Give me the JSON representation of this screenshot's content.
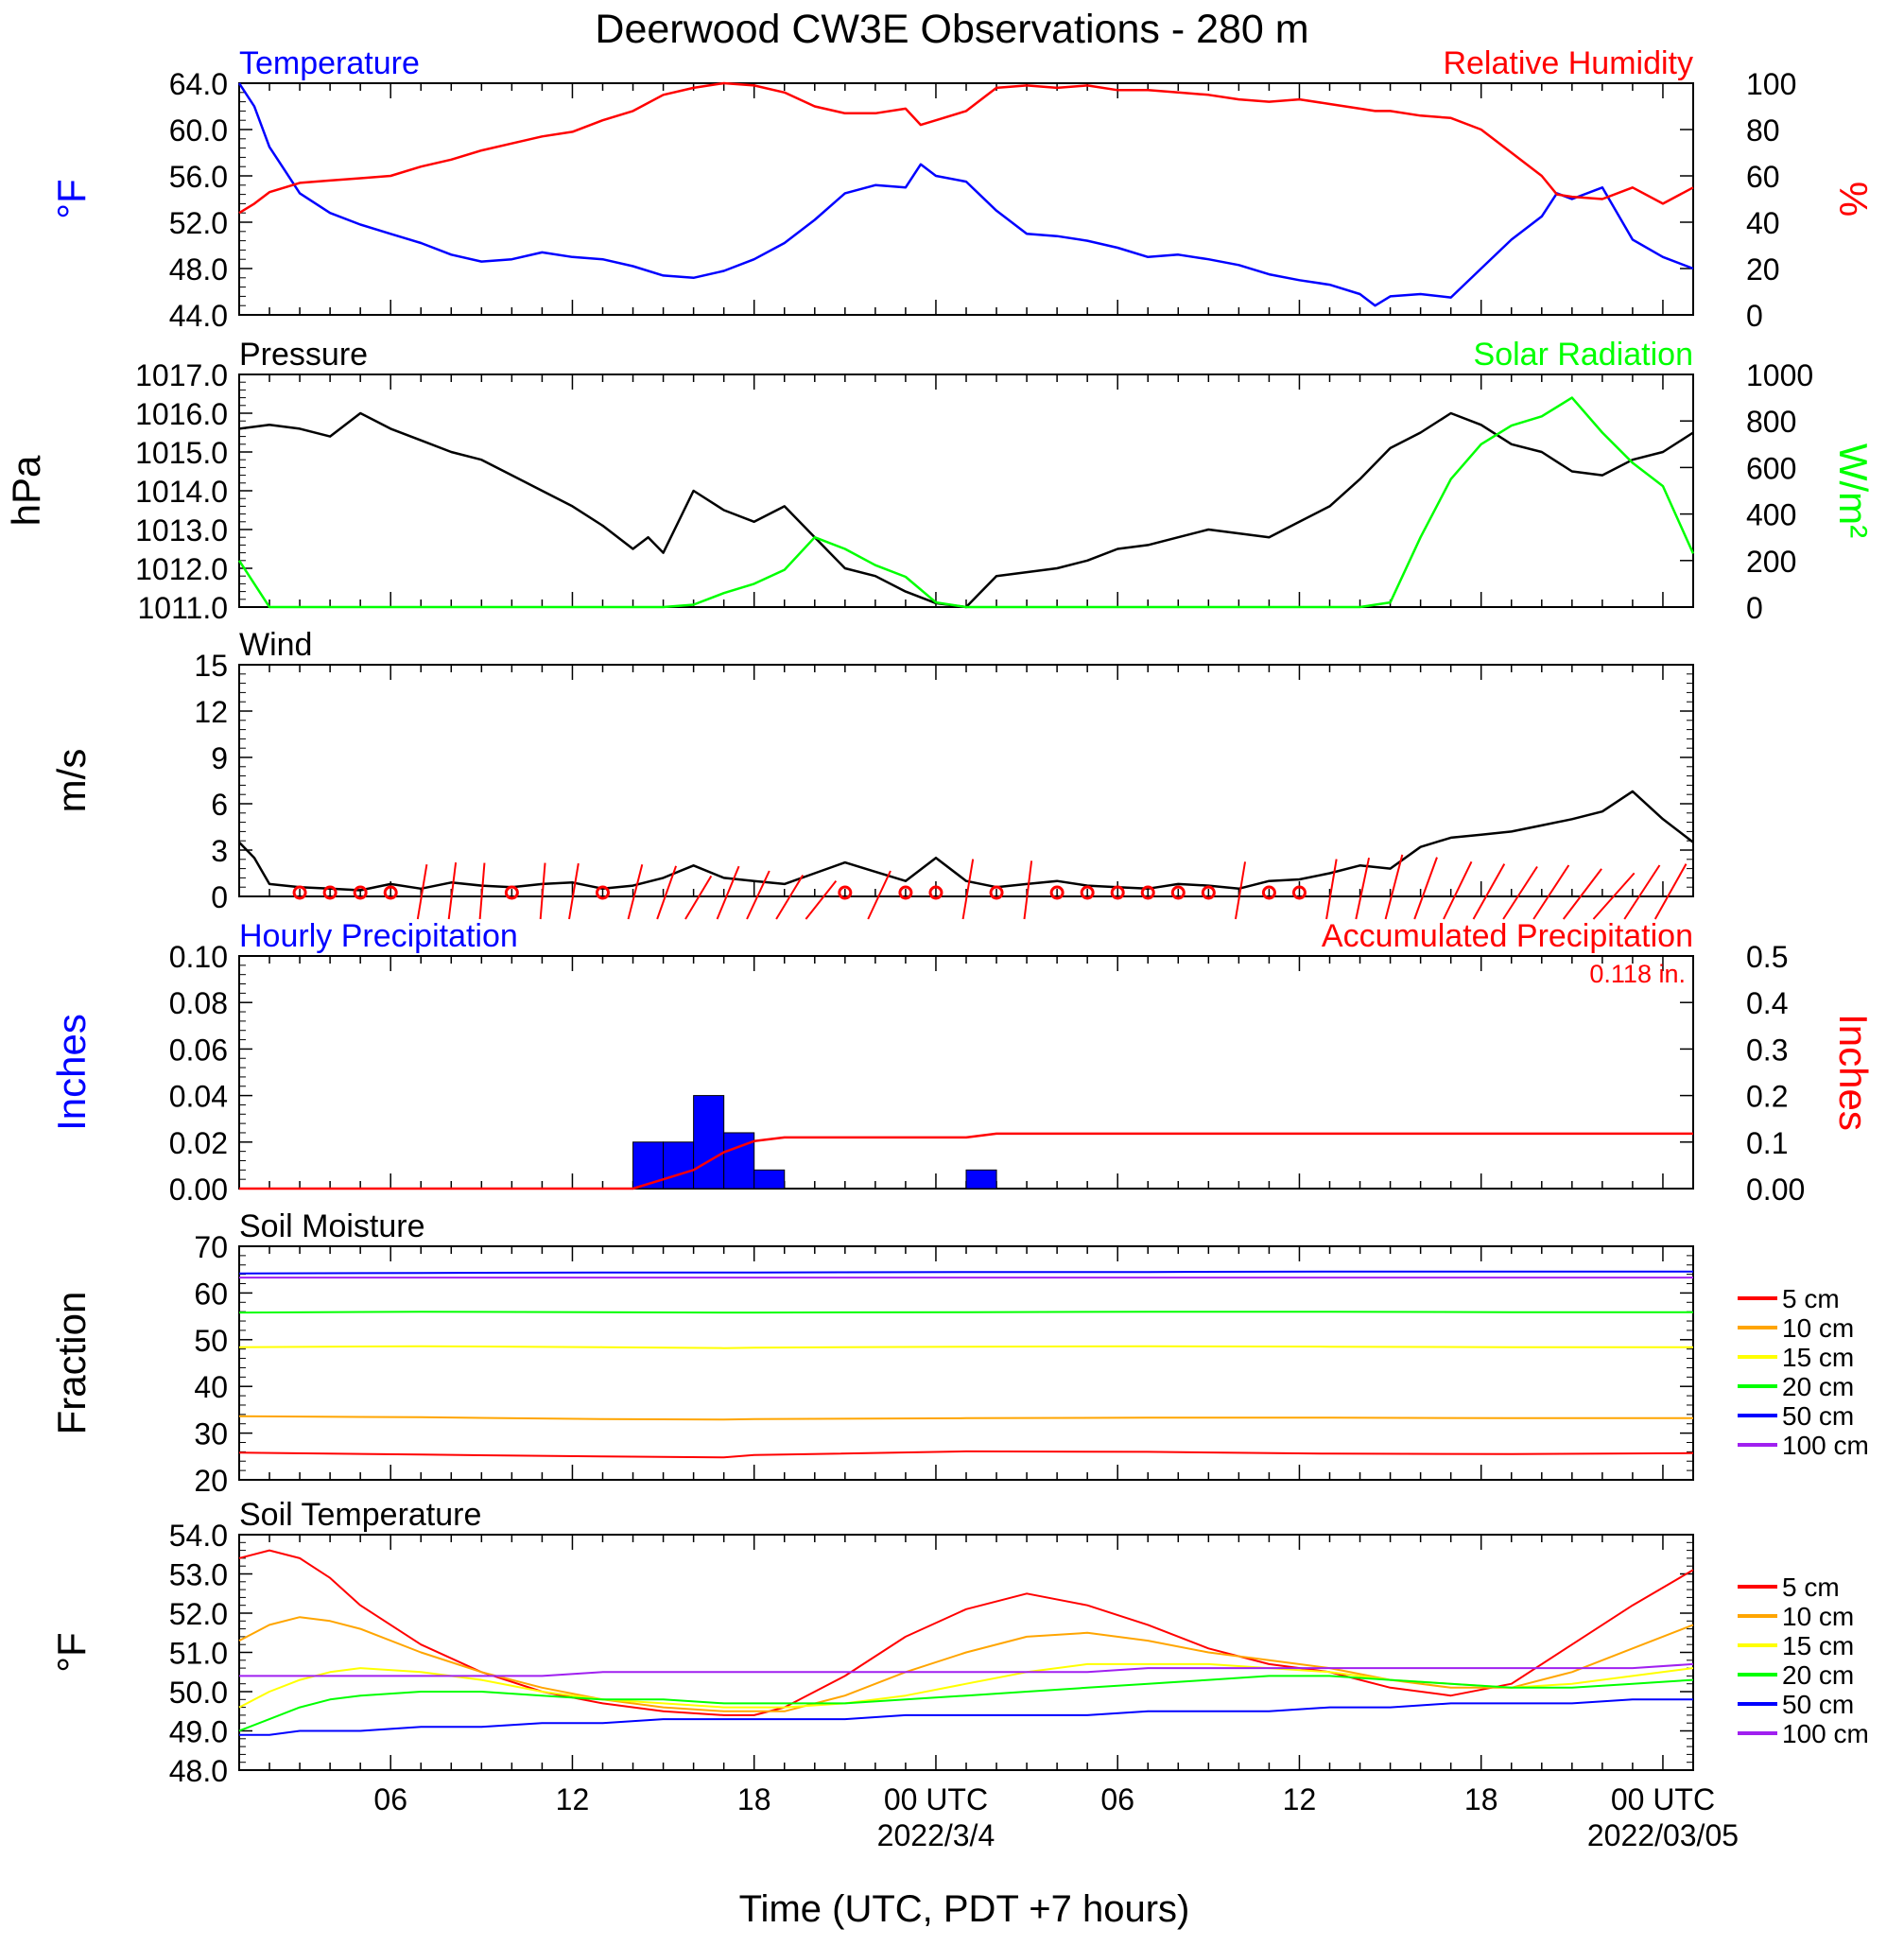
{
  "title": "Deerwood CW3E Observations - 280 m",
  "x_axis": {
    "title": "Time (UTC, PDT +7 hours)",
    "range_hours": [
      0,
      48
    ],
    "tick_labels": [
      {
        "hour": 5,
        "label": "06"
      },
      {
        "hour": 11,
        "label": "12"
      },
      {
        "hour": 17,
        "label": "18"
      },
      {
        "hour": 23,
        "label": "00 UTC"
      },
      {
        "hour": 29,
        "label": "06"
      },
      {
        "hour": 35,
        "label": "12"
      },
      {
        "hour": 41,
        "label": "18"
      },
      {
        "hour": 47,
        "label": "00 UTC"
      }
    ],
    "date_labels": [
      {
        "hour": 23,
        "label": "2022/3/4"
      },
      {
        "hour": 47,
        "label": "2022/03/05"
      }
    ]
  },
  "colors": {
    "temperature": "#0000ff",
    "humidity": "#ff0000",
    "pressure": "#000000",
    "solar": "#00ff00",
    "wind": "#000000",
    "wind_barbs": "#ff0000",
    "hourly_precip": "#0000ff",
    "accum_precip": "#ff0000",
    "depth_5cm": "#ff0000",
    "depth_10cm": "#ffa500",
    "depth_15cm": "#ffff00",
    "depth_20cm": "#00ff00",
    "depth_50cm": "#0000ff",
    "depth_100cm": "#a020f0"
  },
  "chart_data": [
    {
      "type": "line",
      "panel": "temperature-humidity",
      "left_title": "Temperature",
      "right_title": "Relative Humidity",
      "left_ylabel": "°F",
      "right_ylabel": "%",
      "left_ylim": [
        44,
        64
      ],
      "right_ylim": [
        0,
        100
      ],
      "left_ticks": [
        "44.0",
        "48.0",
        "52.0",
        "56.0",
        "60.0",
        "64.0"
      ],
      "right_ticks": [
        "0",
        "20",
        "40",
        "60",
        "80",
        "100"
      ],
      "x": [
        0,
        0.5,
        1,
        1.5,
        2,
        3,
        4,
        5,
        6,
        7,
        8,
        9,
        10,
        11,
        12,
        13,
        14,
        15,
        16,
        17,
        18,
        19,
        20,
        21,
        22,
        22.5,
        23,
        24,
        25,
        26,
        27,
        28,
        29,
        30,
        31,
        32,
        33,
        34,
        35,
        36,
        37,
        37.5,
        38,
        39,
        40,
        41,
        42,
        43,
        43.5,
        44,
        45,
        46,
        47,
        48
      ],
      "series": [
        {
          "name": "Temperature",
          "axis": "left",
          "values": [
            64.0,
            62.0,
            58.5,
            56.5,
            54.5,
            52.8,
            51.8,
            51.0,
            50.2,
            49.2,
            48.6,
            48.8,
            49.4,
            49.0,
            48.8,
            48.2,
            47.4,
            47.2,
            47.8,
            48.8,
            50.2,
            52.2,
            54.5,
            55.2,
            55.0,
            57.0,
            56.0,
            55.5,
            53.0,
            51.0,
            50.8,
            50.4,
            49.8,
            49.0,
            49.2,
            48.8,
            48.3,
            47.5,
            47.0,
            46.6,
            45.8,
            44.8,
            45.6,
            45.8,
            45.5,
            48.0,
            50.5,
            52.5,
            54.5,
            54.0,
            55.0,
            50.5,
            49.0,
            48.0
          ]
        },
        {
          "name": "Relative Humidity",
          "axis": "right",
          "values": [
            44,
            48,
            53,
            55,
            57,
            58,
            59,
            60,
            64,
            67,
            71,
            74,
            77,
            79,
            84,
            88,
            95,
            98,
            100,
            99,
            96,
            90,
            87,
            87,
            89,
            82,
            84,
            88,
            98,
            99,
            98,
            99,
            97,
            97,
            96,
            95,
            93,
            92,
            93,
            91,
            89,
            88,
            88,
            86,
            85,
            80,
            70,
            60,
            52,
            51,
            50,
            55,
            48,
            55
          ]
        }
      ]
    },
    {
      "type": "line",
      "panel": "pressure-solar",
      "left_title": "Pressure",
      "right_title": "Solar Radiation",
      "left_ylabel": "hPa",
      "right_ylabel": "W/m²",
      "left_ylim": [
        1011,
        1017
      ],
      "right_ylim": [
        0,
        1000
      ],
      "left_ticks": [
        "1011.0",
        "1012.0",
        "1013.0",
        "1014.0",
        "1015.0",
        "1016.0",
        "1017.0"
      ],
      "right_ticks": [
        "0",
        "200",
        "400",
        "600",
        "800",
        "1000"
      ],
      "x": [
        0,
        1,
        2,
        3,
        4,
        5,
        6,
        7,
        8,
        9,
        10,
        11,
        12,
        13,
        13.5,
        14,
        15,
        16,
        17,
        18,
        19,
        20,
        21,
        22,
        23,
        24,
        25,
        26,
        27,
        28,
        29,
        30,
        31,
        32,
        33,
        34,
        35,
        36,
        37,
        38,
        39,
        40,
        41,
        42,
        43,
        44,
        45,
        46,
        47,
        48
      ],
      "series": [
        {
          "name": "Pressure",
          "axis": "left",
          "values": [
            1015.6,
            1015.7,
            1015.6,
            1015.4,
            1016.0,
            1015.6,
            1015.3,
            1015.0,
            1014.8,
            1014.4,
            1014.0,
            1013.6,
            1013.1,
            1012.5,
            1012.8,
            1012.4,
            1014.0,
            1013.5,
            1013.2,
            1013.6,
            1012.8,
            1012.0,
            1011.8,
            1011.4,
            1011.1,
            1011.0,
            1011.8,
            1011.9,
            1012.0,
            1012.2,
            1012.5,
            1012.6,
            1012.8,
            1013.0,
            1012.9,
            1012.8,
            1013.2,
            1013.6,
            1014.3,
            1015.1,
            1015.5,
            1016.0,
            1015.7,
            1015.2,
            1015.0,
            1014.5,
            1014.4,
            1014.8,
            1015.0,
            1015.5
          ]
        },
        {
          "name": "Solar Radiation",
          "axis": "right",
          "values": [
            200,
            0,
            0,
            0,
            0,
            0,
            0,
            0,
            0,
            0,
            0,
            0,
            0,
            0,
            0,
            0,
            10,
            60,
            100,
            160,
            300,
            250,
            180,
            130,
            20,
            0,
            0,
            0,
            0,
            0,
            0,
            0,
            0,
            0,
            0,
            0,
            0,
            0,
            0,
            20,
            300,
            550,
            700,
            780,
            820,
            900,
            750,
            620,
            520,
            230
          ]
        }
      ]
    },
    {
      "type": "line",
      "panel": "wind",
      "left_title": "Wind",
      "left_ylabel": "m/s",
      "left_ylim": [
        0,
        15
      ],
      "left_ticks": [
        "0",
        "3",
        "6",
        "9",
        "12",
        "15"
      ],
      "x": [
        0,
        0.5,
        1,
        2,
        3,
        4,
        5,
        6,
        7,
        8,
        9,
        10,
        11,
        12,
        13,
        14,
        15,
        16,
        17,
        18,
        19,
        20,
        21,
        22,
        23,
        24,
        25,
        26,
        27,
        28,
        29,
        30,
        31,
        32,
        33,
        34,
        35,
        36,
        37,
        38,
        39,
        40,
        41,
        42,
        43,
        44,
        45,
        46,
        47,
        48
      ],
      "series": [
        {
          "name": "Wind",
          "axis": "left",
          "values": [
            3.5,
            2.5,
            0.8,
            0.6,
            0.5,
            0.4,
            0.8,
            0.5,
            0.9,
            0.7,
            0.6,
            0.8,
            0.9,
            0.5,
            0.7,
            1.2,
            2.0,
            1.2,
            1.0,
            0.8,
            1.5,
            2.2,
            1.6,
            1.0,
            2.5,
            1.0,
            0.6,
            0.8,
            1.0,
            0.7,
            0.6,
            0.5,
            0.8,
            0.7,
            0.5,
            1.0,
            1.1,
            1.5,
            2.0,
            1.8,
            3.2,
            3.8,
            4.0,
            4.2,
            4.6,
            5.0,
            5.5,
            6.8,
            5.0,
            3.5
          ]
        }
      ],
      "barb_hours": [
        2,
        3,
        4,
        5,
        6,
        7,
        8,
        9,
        10,
        11,
        12,
        13,
        14,
        15,
        16,
        17,
        18,
        19,
        20,
        21,
        22,
        23,
        24,
        25,
        26,
        27,
        28,
        29,
        30,
        31,
        32,
        33,
        34,
        35,
        36,
        37,
        38,
        39,
        40,
        41,
        42,
        43,
        44,
        45,
        46,
        47
      ],
      "barb_speeds": [
        0,
        0,
        0,
        0,
        1.0,
        1.2,
        1.0,
        0,
        1.0,
        1.2,
        0,
        1.5,
        2.0,
        2.2,
        2.5,
        2.0,
        2.5,
        3.0,
        0,
        2.0,
        0,
        0,
        2.0,
        0,
        1.5,
        0,
        0,
        0,
        0,
        0,
        0,
        1.5,
        0,
        0,
        2.0,
        2.5,
        3.5,
        4.0,
        4.5,
        5.0,
        5.5,
        6.0,
        6.5,
        7.0,
        6.0,
        5.0
      ],
      "barb_directions": [
        0,
        0,
        0,
        0,
        20,
        15,
        10,
        0,
        10,
        20,
        0,
        30,
        40,
        60,
        45,
        50,
        60,
        70,
        0,
        50,
        0,
        0,
        20,
        0,
        15,
        0,
        0,
        0,
        0,
        0,
        0,
        20,
        0,
        0,
        20,
        25,
        30,
        40,
        50,
        55,
        60,
        60,
        65,
        70,
        60,
        55
      ]
    },
    {
      "type": "bar",
      "panel": "precipitation",
      "left_title": "Hourly Precipitation",
      "right_title": "Accumulated Precipitation",
      "total_label": "0.118 in.",
      "left_ylabel": "Inches",
      "right_ylabel": "Inches",
      "left_ylim": [
        0,
        0.1
      ],
      "right_ylim": [
        0,
        0.5
      ],
      "left_ticks": [
        "0.00",
        "0.02",
        "0.04",
        "0.06",
        "0.08",
        "0.10"
      ],
      "right_ticks": [
        "0.00",
        "0.1",
        "0.2",
        "0.3",
        "0.4",
        "0.5"
      ],
      "bar_start_hours": [
        13,
        14,
        15,
        16,
        17,
        24
      ],
      "bar_values": [
        0.02,
        0.02,
        0.04,
        0.024,
        0.008,
        0.008
      ],
      "series": [
        {
          "name": "Accumulated Precipitation",
          "axis": "right",
          "x": [
            0,
            13,
            14,
            15,
            16,
            17,
            18,
            24,
            25,
            48
          ],
          "values": [
            0,
            0,
            0.02,
            0.04,
            0.078,
            0.102,
            0.11,
            0.11,
            0.118,
            0.118
          ]
        }
      ]
    },
    {
      "type": "line",
      "panel": "soil-moisture",
      "left_title": "Soil Moisture",
      "left_ylabel": "Fraction",
      "left_ylim": [
        20,
        70
      ],
      "left_ticks": [
        "20",
        "30",
        "40",
        "50",
        "60",
        "70"
      ],
      "x": [
        0,
        6,
        12,
        16,
        17,
        24,
        30,
        36,
        42,
        48
      ],
      "series": [
        {
          "name": "5 cm",
          "values": [
            25.8,
            25.4,
            25.0,
            24.8,
            25.3,
            26.1,
            26.0,
            25.6,
            25.5,
            25.7
          ]
        },
        {
          "name": "10 cm",
          "values": [
            33.6,
            33.4,
            33.0,
            32.9,
            33.0,
            33.2,
            33.3,
            33.3,
            33.2,
            33.2
          ]
        },
        {
          "name": "15 cm",
          "values": [
            48.4,
            48.6,
            48.4,
            48.2,
            48.3,
            48.5,
            48.6,
            48.5,
            48.4,
            48.4
          ]
        },
        {
          "name": "20 cm",
          "values": [
            55.8,
            56.0,
            55.9,
            55.8,
            55.8,
            55.9,
            56.0,
            56.0,
            55.9,
            55.9
          ]
        },
        {
          "name": "50 cm",
          "values": [
            64.2,
            64.3,
            64.4,
            64.4,
            64.4,
            64.5,
            64.5,
            64.6,
            64.6,
            64.6
          ]
        },
        {
          "name": "100 cm",
          "values": [
            63.3,
            63.3,
            63.3,
            63.3,
            63.3,
            63.3,
            63.3,
            63.3,
            63.3,
            63.3
          ]
        }
      ]
    },
    {
      "type": "line",
      "panel": "soil-temperature",
      "left_title": "Soil Temperature",
      "left_ylabel": "°F",
      "left_ylim": [
        48,
        54
      ],
      "left_ticks": [
        "48.0",
        "49.0",
        "50.0",
        "51.0",
        "52.0",
        "53.0",
        "54.0"
      ],
      "x": [
        0,
        1,
        2,
        3,
        4,
        6,
        8,
        10,
        12,
        14,
        16,
        17,
        18,
        20,
        22,
        24,
        26,
        28,
        30,
        32,
        34,
        36,
        38,
        40,
        42,
        44,
        46,
        48
      ],
      "series": [
        {
          "name": "5 cm",
          "values": [
            53.4,
            53.6,
            53.4,
            52.9,
            52.2,
            51.2,
            50.5,
            50.0,
            49.7,
            49.5,
            49.4,
            49.4,
            49.6,
            50.4,
            51.4,
            52.1,
            52.5,
            52.2,
            51.7,
            51.1,
            50.7,
            50.5,
            50.1,
            49.9,
            50.2,
            51.2,
            52.2,
            53.1
          ]
        },
        {
          "name": "10 cm",
          "values": [
            51.3,
            51.7,
            51.9,
            51.8,
            51.6,
            51.0,
            50.5,
            50.1,
            49.8,
            49.6,
            49.5,
            49.5,
            49.5,
            49.9,
            50.5,
            51.0,
            51.4,
            51.5,
            51.3,
            51.0,
            50.8,
            50.6,
            50.3,
            50.1,
            50.1,
            50.5,
            51.1,
            51.7
          ]
        },
        {
          "name": "15 cm",
          "values": [
            49.6,
            50.0,
            50.3,
            50.5,
            50.6,
            50.5,
            50.3,
            50.0,
            49.8,
            49.7,
            49.6,
            49.6,
            49.6,
            49.7,
            49.9,
            50.2,
            50.5,
            50.7,
            50.7,
            50.7,
            50.6,
            50.5,
            50.3,
            50.2,
            50.1,
            50.2,
            50.4,
            50.6
          ]
        },
        {
          "name": "20 cm",
          "values": [
            49.0,
            49.3,
            49.6,
            49.8,
            49.9,
            50.0,
            50.0,
            49.9,
            49.8,
            49.8,
            49.7,
            49.7,
            49.7,
            49.7,
            49.8,
            49.9,
            50.0,
            50.1,
            50.2,
            50.3,
            50.4,
            50.4,
            50.3,
            50.2,
            50.1,
            50.1,
            50.2,
            50.3
          ]
        },
        {
          "name": "50 cm",
          "values": [
            48.9,
            48.9,
            49.0,
            49.0,
            49.0,
            49.1,
            49.1,
            49.2,
            49.2,
            49.3,
            49.3,
            49.3,
            49.3,
            49.3,
            49.4,
            49.4,
            49.4,
            49.4,
            49.5,
            49.5,
            49.5,
            49.6,
            49.6,
            49.7,
            49.7,
            49.7,
            49.8,
            49.8
          ]
        },
        {
          "name": "100 cm",
          "values": [
            50.4,
            50.4,
            50.4,
            50.4,
            50.4,
            50.4,
            50.4,
            50.4,
            50.5,
            50.5,
            50.5,
            50.5,
            50.5,
            50.5,
            50.5,
            50.5,
            50.5,
            50.5,
            50.6,
            50.6,
            50.6,
            50.6,
            50.6,
            50.6,
            50.6,
            50.6,
            50.6,
            50.7
          ]
        }
      ]
    }
  ]
}
